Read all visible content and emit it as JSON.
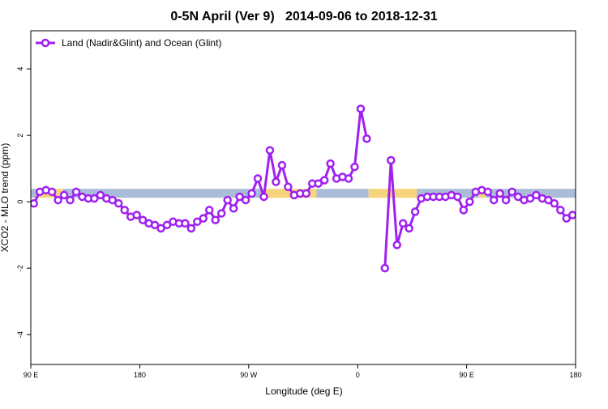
{
  "chart_data": {
    "type": "line",
    "title": "0-5N April (Ver 9)   2014-09-06 to 2018-12-31",
    "x_label": "Longitude (deg E)",
    "y_label": "XCO2 - MLO trend (ppm)",
    "xlim": [
      90,
      540
    ],
    "ylim": [
      -4.9,
      5.15
    ],
    "xticks": [
      {
        "value": 90,
        "label": "90 E"
      },
      {
        "value": 180,
        "label": "180"
      },
      {
        "value": 270,
        "label": "90 W"
      },
      {
        "value": 360,
        "label": "0"
      },
      {
        "value": 450,
        "label": "90 E"
      },
      {
        "value": 540,
        "label": "180"
      }
    ],
    "yticks": [
      -4,
      -2,
      0,
      2,
      4
    ],
    "legend": "top-left",
    "background_band": {
      "ylim": [
        0.12,
        0.39
      ],
      "segments": [
        {
          "from": 90,
          "to": 94.7,
          "color": "#a9bdd9"
        },
        {
          "from": 94.7,
          "to": 116.8,
          "color": "#f6d47c"
        },
        {
          "from": 116.8,
          "to": 282,
          "color": "#a9bdd9"
        },
        {
          "from": 282,
          "to": 326,
          "color": "#f6d47c"
        },
        {
          "from": 326,
          "to": 369,
          "color": "#a9bdd9"
        },
        {
          "from": 369,
          "to": 409,
          "color": "#f6d47c"
        },
        {
          "from": 409,
          "to": 460,
          "color": "#a9bdd9"
        },
        {
          "from": 460,
          "to": 466,
          "color": "#f6d47c"
        },
        {
          "from": 466,
          "to": 540,
          "color": "#a9bdd9"
        }
      ]
    },
    "x": [
      92.5,
      97.5,
      102.5,
      107.5,
      112.5,
      117.5,
      122.5,
      127.5,
      132.5,
      137.5,
      142.5,
      147.5,
      152.5,
      157.5,
      162.5,
      167.5,
      172.5,
      177.5,
      182.5,
      187.5,
      192.5,
      197.5,
      202.5,
      207.5,
      212.5,
      217.5,
      222.5,
      227.5,
      232.5,
      237.5,
      242.5,
      247.5,
      252.5,
      257.5,
      262.5,
      267.5,
      272.5,
      277.5,
      282.5,
      287.5,
      292.5,
      297.5,
      302.5,
      307.5,
      312.5,
      317.5,
      322.5,
      327.5,
      332.5,
      337.5,
      342.5,
      347.5,
      352.5,
      357.5,
      362.5,
      367.5,
      372.5,
      377.5,
      382.5,
      387.5,
      392.5,
      397.5,
      402.5,
      407.5,
      412.5,
      417.5,
      422.5,
      427.5,
      432.5,
      437.5,
      442.5,
      447.5,
      452.5,
      457.5,
      462.5,
      467.5,
      472.5,
      477.5,
      482.5,
      487.5,
      492.5,
      497.5,
      502.5,
      507.5,
      512.5,
      517.5,
      522.5,
      527.5,
      532.5,
      537.5
    ],
    "series": [
      {
        "name": "Land (Nadir&Glint) and Ocean (Glint)",
        "color": "#a020f0",
        "values": [
          -0.05,
          0.3,
          0.35,
          0.3,
          0.05,
          0.2,
          0.05,
          0.3,
          0.15,
          0.1,
          0.1,
          0.2,
          0.1,
          0.05,
          -0.05,
          -0.25,
          -0.45,
          -0.4,
          -0.55,
          -0.65,
          -0.7,
          -0.8,
          -0.7,
          -0.6,
          -0.65,
          -0.65,
          -0.8,
          -0.6,
          -0.5,
          -0.25,
          -0.55,
          -0.35,
          0.05,
          -0.2,
          0.15,
          0.05,
          0.25,
          0.7,
          0.15,
          1.55,
          0.6,
          1.1,
          0.45,
          0.2,
          0.25,
          0.25,
          0.55,
          0.55,
          0.65,
          1.15,
          0.7,
          0.75,
          0.7,
          1.05,
          2.8,
          1.9,
          null,
          null,
          -2.0,
          1.25,
          -1.3,
          -0.65,
          -0.8,
          -0.3,
          0.1,
          0.15,
          0.15,
          0.15,
          0.15,
          0.2,
          0.15,
          -0.25,
          0.0,
          0.3,
          0.35,
          0.3,
          0.05,
          0.25,
          0.05,
          0.3,
          0.15,
          0.05,
          0.1,
          0.2,
          0.1,
          0.05,
          -0.05,
          -0.25,
          -0.5,
          -0.4
        ]
      }
    ]
  }
}
